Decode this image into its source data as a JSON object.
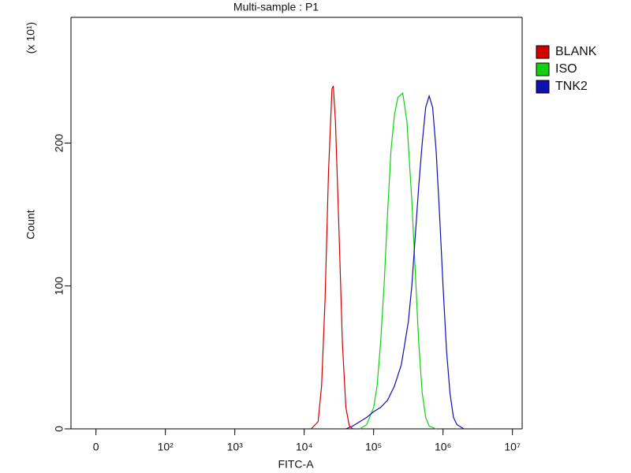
{
  "chart_data": {
    "type": "line",
    "title": "Multi-sample : P1",
    "x_label": "FITC-A",
    "y_label": "Count",
    "y_multiplier": "(x 10¹)",
    "xscale": "symlog",
    "linthresh": 100,
    "xlim": [
      -36,
      13800000
    ],
    "ylim": [
      0,
      288
    ],
    "xticks": [
      0,
      {
        "value": 100,
        "label": "10²"
      },
      {
        "value": 1000,
        "label": "10³"
      },
      {
        "value": 10000,
        "label": "10⁴"
      },
      {
        "value": 100000,
        "label": "10⁵"
      },
      {
        "value": 1000000,
        "label": "10⁶"
      },
      {
        "value": 10000000,
        "label": "10⁷"
      }
    ],
    "yticks": [
      0,
      100,
      200
    ],
    "legend": "right",
    "series": [
      {
        "name": "BLANK",
        "color": "#d00000",
        "x": [
          12589,
          15849,
          17783,
          19953,
          22387,
          25119,
          26303,
          28184,
          31623,
          35481,
          39811,
          44668,
          50119
        ],
        "values": [
          0,
          5,
          30,
          90,
          180,
          238,
          240,
          215,
          140,
          60,
          15,
          2,
          0
        ]
      },
      {
        "name": "ISO",
        "color": "#10d010",
        "x": [
          63096,
          79433,
          100000,
          112202,
          125893,
          141254,
          158489,
          177828,
          199526,
          223872,
          263027,
          301995,
          354813,
          398107,
          446684,
          501187,
          562341,
          630957,
          794328
        ],
        "values": [
          0,
          3,
          15,
          30,
          60,
          100,
          150,
          195,
          220,
          232,
          235,
          215,
          160,
          110,
          60,
          25,
          8,
          2,
          0
        ]
      },
      {
        "name": "TNK2",
        "color": "#1010b0",
        "x": [
          39811,
          50119,
          63096,
          79433,
          100000,
          125893,
          158489,
          199526,
          251189,
          316228,
          354813,
          398107,
          446684,
          501187,
          562341,
          630957,
          707946,
          794328,
          891251,
          1000000,
          1122018,
          1258925,
          1412538,
          1584893,
          1995262
        ],
        "values": [
          0,
          2,
          5,
          8,
          12,
          15,
          20,
          30,
          45,
          75,
          100,
          135,
          170,
          200,
          225,
          233,
          225,
          195,
          150,
          100,
          55,
          25,
          8,
          3,
          0
        ]
      }
    ]
  }
}
